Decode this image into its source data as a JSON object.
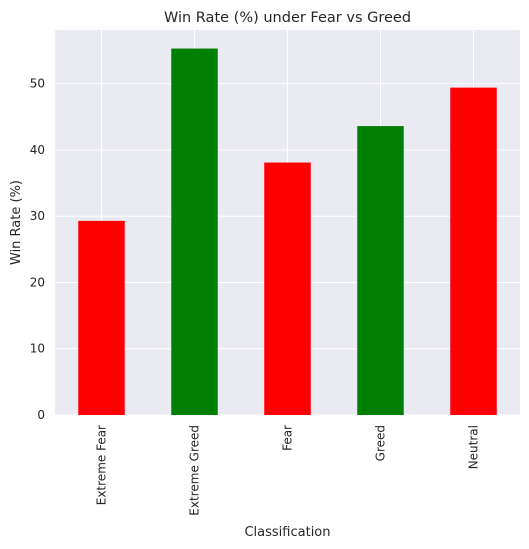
{
  "chart_data": {
    "type": "bar",
    "title": "Win Rate (%) under Fear vs Greed",
    "xlabel": "Classification",
    "ylabel": "Win Rate (%)",
    "categories": [
      "Extreme Fear",
      "Extreme Greed",
      "Fear",
      "Greed",
      "Neutral"
    ],
    "values": [
      29.3,
      55.3,
      38.1,
      43.6,
      49.4
    ],
    "bar_colors": [
      "#ff0000",
      "#008000",
      "#ff0000",
      "#008000",
      "#ff0000"
    ],
    "yticks": [
      0,
      10,
      20,
      30,
      40,
      50
    ],
    "ylim": [
      0,
      58.1
    ],
    "grid": true,
    "background_color": "#eaeaf2"
  }
}
